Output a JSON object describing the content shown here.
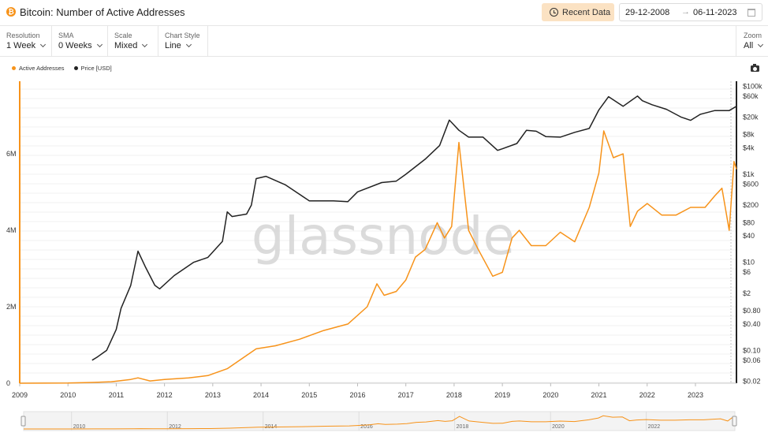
{
  "header": {
    "title": "Bitcoin: Number of Active Addresses",
    "recent_btn": "Recent Data",
    "date_from": "29-12-2008",
    "date_to": "06-11-2023",
    "date_arrow": "→"
  },
  "controls": [
    {
      "label": "Resolution",
      "value": "1 Week"
    },
    {
      "label": "SMA",
      "value": "0 Weeks"
    },
    {
      "label": "Scale",
      "value": "Mixed"
    },
    {
      "label": "Chart Style",
      "value": "Line"
    }
  ],
  "zoom": {
    "label": "Zoom",
    "value": "All"
  },
  "legend": [
    {
      "name": "Active Addresses",
      "color": "#f7931a"
    },
    {
      "name": "Price [USD]",
      "color": "#222222"
    }
  ],
  "watermark": "glassnode",
  "chart_data": {
    "type": "line",
    "title": "Bitcoin: Number of Active Addresses",
    "xlabel": "",
    "ylabel": "",
    "x_ticks": [
      "2009",
      "2010",
      "2011",
      "2012",
      "2013",
      "2014",
      "2015",
      "2016",
      "2017",
      "2018",
      "2019",
      "2020",
      "2021",
      "2022",
      "2023"
    ],
    "xlim": [
      2009.0,
      2023.85
    ],
    "left_axis": {
      "scale": "linear",
      "ylim": [
        0,
        7900000
      ],
      "ticks": [
        0,
        2000000,
        4000000,
        6000000
      ],
      "tick_labels": [
        "0",
        "2M",
        "4M",
        "6M"
      ]
    },
    "right_axis": {
      "scale": "log",
      "ylim": [
        0.018,
        130000
      ],
      "ticks": [
        100000,
        60000,
        20000,
        8000,
        4000,
        1000,
        600,
        200,
        80,
        40,
        10,
        6,
        2,
        0.8,
        0.4,
        0.1,
        0.06,
        0.02
      ],
      "tick_labels": [
        "$100k",
        "$60k",
        "$20k",
        "$8k",
        "$4k",
        "$1k",
        "$600",
        "$200",
        "$80",
        "$40",
        "$10",
        "$6",
        "$2",
        "$0.80",
        "$0.40",
        "$0.10",
        "$0.06",
        "$0.02"
      ]
    },
    "series": [
      {
        "name": "Active Addresses",
        "axis": "left",
        "color": "#f7931a",
        "x": [
          2009.0,
          2009.5,
          2010.0,
          2010.5,
          2010.9,
          2011.3,
          2011.45,
          2011.7,
          2012.0,
          2012.5,
          2012.9,
          2013.3,
          2013.9,
          2014.3,
          2014.8,
          2015.3,
          2015.8,
          2016.2,
          2016.4,
          2016.55,
          2016.8,
          2017.0,
          2017.2,
          2017.4,
          2017.65,
          2017.8,
          2017.95,
          2018.1,
          2018.3,
          2018.5,
          2018.8,
          2019.0,
          2019.2,
          2019.35,
          2019.6,
          2019.9,
          2020.2,
          2020.5,
          2020.8,
          2021.0,
          2021.1,
          2021.3,
          2021.5,
          2021.65,
          2021.8,
          2022.0,
          2022.3,
          2022.6,
          2022.9,
          2023.2,
          2023.4,
          2023.55,
          2023.7,
          2023.8,
          2023.85
        ],
        "values": [
          0,
          2000,
          5000,
          20000,
          40000,
          100000,
          140000,
          60000,
          100000,
          140000,
          200000,
          380000,
          900000,
          980000,
          1150000,
          1380000,
          1550000,
          2000000,
          2600000,
          2300000,
          2400000,
          2700000,
          3300000,
          3500000,
          4200000,
          3800000,
          4100000,
          6300000,
          4000000,
          3500000,
          2800000,
          2900000,
          3800000,
          4000000,
          3600000,
          3600000,
          3950000,
          3700000,
          4600000,
          5500000,
          6600000,
          5900000,
          6000000,
          4100000,
          4500000,
          4700000,
          4400000,
          4400000,
          4600000,
          4600000,
          4900000,
          5100000,
          4000000,
          5800000,
          5600000
        ]
      },
      {
        "name": "Price [USD]",
        "axis": "right",
        "color": "#222222",
        "x": [
          2010.5,
          2010.6,
          2010.8,
          2011.0,
          2011.1,
          2011.3,
          2011.45,
          2011.6,
          2011.8,
          2011.9,
          2012.2,
          2012.6,
          2012.9,
          2013.2,
          2013.3,
          2013.4,
          2013.7,
          2013.8,
          2013.9,
          2014.1,
          2014.5,
          2014.8,
          2015.0,
          2015.5,
          2015.8,
          2016.0,
          2016.5,
          2016.8,
          2017.0,
          2017.4,
          2017.7,
          2017.9,
          2017.95,
          2018.1,
          2018.3,
          2018.6,
          2018.9,
          2019.0,
          2019.3,
          2019.5,
          2019.7,
          2019.9,
          2020.2,
          2020.5,
          2020.8,
          2021.0,
          2021.2,
          2021.5,
          2021.8,
          2021.9,
          2022.1,
          2022.4,
          2022.7,
          2022.9,
          2023.1,
          2023.4,
          2023.7,
          2023.85
        ],
        "values": [
          0.06,
          0.07,
          0.1,
          0.3,
          0.9,
          3,
          18,
          8,
          3,
          2.5,
          5,
          10,
          13,
          30,
          140,
          110,
          125,
          200,
          800,
          900,
          580,
          350,
          250,
          250,
          240,
          400,
          650,
          700,
          1000,
          2200,
          4500,
          17000,
          15000,
          10000,
          7000,
          7000,
          3500,
          3800,
          5000,
          10000,
          9500,
          7200,
          7000,
          9000,
          11000,
          29000,
          58000,
          35000,
          60000,
          47000,
          38000,
          30000,
          20000,
          16800,
          23000,
          28000,
          28000,
          35000
        ]
      }
    ]
  }
}
